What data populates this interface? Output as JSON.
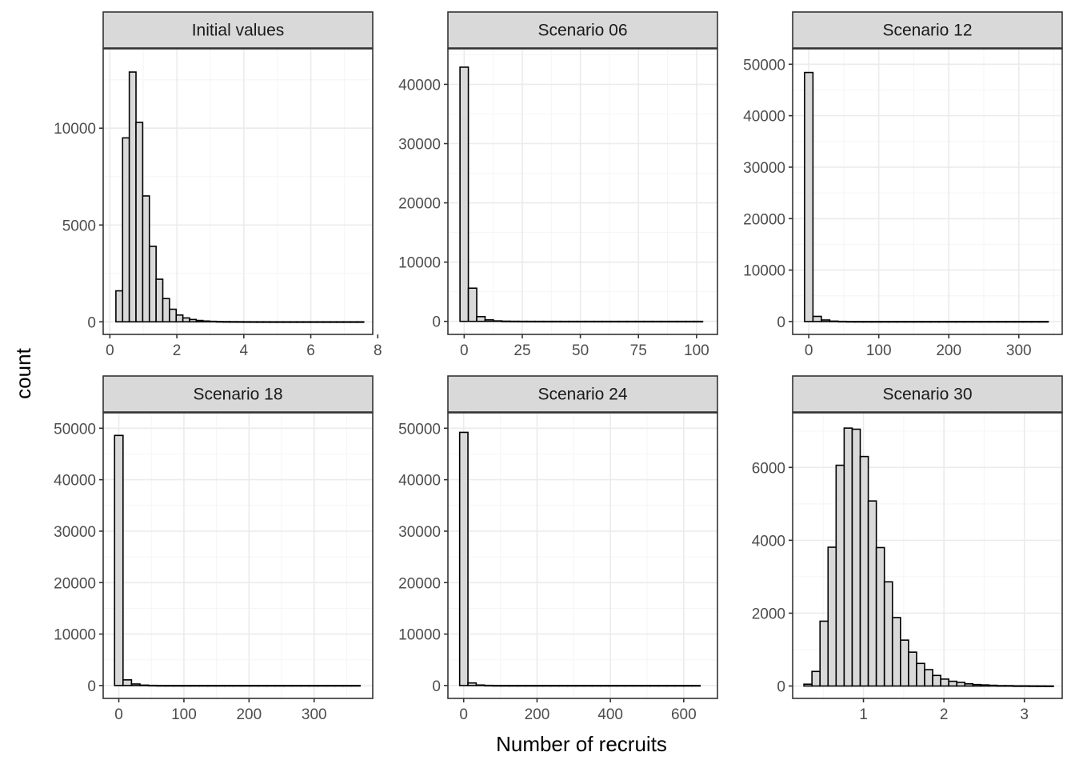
{
  "figure": {
    "xlabel": "Number of recruits",
    "ylabel": "count",
    "colors": {
      "bar_fill": "#d9d9d9",
      "bar_stroke": "#000000",
      "strip_fill": "#d9d9d9",
      "grid_major": "#ebebeb",
      "grid_minor": "#f5f5f5",
      "panel_border": "#333333",
      "tick_label": "#4d4d4d"
    }
  },
  "chart_data": [
    {
      "type": "bar",
      "title": "Initial values",
      "x_start": 0.18,
      "bin_width": 0.2,
      "values": [
        1600,
        9500,
        12900,
        10300,
        6500,
        3900,
        2200,
        1200,
        650,
        350,
        200,
        120,
        70,
        40,
        25,
        15,
        10,
        8,
        6,
        4,
        3,
        2,
        2,
        1,
        1,
        1,
        1,
        1,
        1,
        1,
        1,
        1,
        1,
        1,
        1,
        1,
        1
      ],
      "xlim": [
        -0.2,
        7.85
      ],
      "ylim": [
        -650,
        14100
      ],
      "xticks": [
        0,
        2,
        4,
        6,
        8
      ],
      "xtick_labels": [
        "0",
        "2",
        "4",
        "6",
        "8"
      ],
      "yticks": [
        0,
        5000,
        10000
      ],
      "ytick_labels": [
        "0",
        "5000",
        "10000"
      ],
      "grid": true
    },
    {
      "type": "bar",
      "title": "Scenario 06",
      "x_start": -1.8,
      "bin_width": 3.6,
      "values": [
        42900,
        5600,
        800,
        250,
        80,
        30,
        15,
        8,
        5,
        3,
        2,
        2,
        1,
        1,
        1,
        1,
        1,
        1,
        1,
        1,
        1,
        1,
        1,
        1,
        1,
        1,
        1,
        1,
        1
      ],
      "xlim": [
        -7,
        109
      ],
      "ylim": [
        -2200,
        46000
      ],
      "xticks": [
        0,
        25,
        50,
        75,
        100
      ],
      "xtick_labels": [
        "0",
        "25",
        "50",
        "75",
        "100"
      ],
      "yticks": [
        0,
        10000,
        20000,
        30000,
        40000
      ],
      "ytick_labels": [
        "0",
        "10000",
        "20000",
        "30000",
        "40000"
      ],
      "grid": true
    },
    {
      "type": "bar",
      "title": "Scenario 12",
      "x_start": -6,
      "bin_width": 12,
      "values": [
        48400,
        1000,
        300,
        80,
        30,
        10,
        5,
        3,
        2,
        1,
        1,
        1,
        1,
        1,
        1,
        1,
        1,
        1,
        1,
        1,
        1,
        1,
        1,
        1,
        1,
        1,
        1,
        1,
        1
      ],
      "xlim": [
        -23,
        362
      ],
      "ylim": [
        -2500,
        53000
      ],
      "xticks": [
        0,
        100,
        200,
        300
      ],
      "xtick_labels": [
        "0",
        "100",
        "200",
        "300"
      ],
      "yticks": [
        0,
        10000,
        20000,
        30000,
        40000,
        50000
      ],
      "ytick_labels": [
        "0",
        "10000",
        "20000",
        "30000",
        "40000",
        "50000"
      ],
      "grid": true
    },
    {
      "type": "bar",
      "title": "Scenario 18",
      "x_start": -6.5,
      "bin_width": 13,
      "values": [
        48600,
        1100,
        300,
        80,
        30,
        10,
        5,
        3,
        2,
        1,
        1,
        1,
        1,
        1,
        1,
        1,
        1,
        1,
        1,
        1,
        1,
        1,
        1,
        1,
        1,
        1,
        1,
        1,
        1
      ],
      "xlim": [
        -24,
        390
      ],
      "ylim": [
        -2500,
        53000
      ],
      "xticks": [
        0,
        100,
        200,
        300
      ],
      "xtick_labels": [
        "0",
        "100",
        "200",
        "300"
      ],
      "yticks": [
        0,
        10000,
        20000,
        30000,
        40000,
        50000
      ],
      "ytick_labels": [
        "0",
        "10000",
        "20000",
        "30000",
        "40000",
        "50000"
      ],
      "grid": true
    },
    {
      "type": "bar",
      "title": "Scenario 24",
      "x_start": -11,
      "bin_width": 22.6,
      "values": [
        49200,
        500,
        100,
        30,
        10,
        5,
        3,
        2,
        1,
        1,
        1,
        1,
        1,
        1,
        1,
        1,
        1,
        1,
        1,
        1,
        1,
        1,
        1,
        1,
        1,
        1,
        1,
        1,
        1
      ],
      "xlim": [
        -43,
        692
      ],
      "ylim": [
        -2500,
        53000
      ],
      "xticks": [
        0,
        200,
        400,
        600
      ],
      "xtick_labels": [
        "0",
        "200",
        "400",
        "600"
      ],
      "yticks": [
        0,
        10000,
        20000,
        30000,
        40000,
        50000
      ],
      "ytick_labels": [
        "0",
        "10000",
        "20000",
        "30000",
        "40000",
        "50000"
      ],
      "grid": true
    },
    {
      "type": "bar",
      "title": "Scenario 30",
      "x_start": 0.26,
      "bin_width": 0.1,
      "values": [
        50,
        400,
        1780,
        3810,
        6060,
        7080,
        7050,
        6300,
        5080,
        3800,
        2860,
        1880,
        1260,
        930,
        620,
        450,
        290,
        190,
        130,
        100,
        60,
        40,
        30,
        20,
        10,
        10,
        5,
        5,
        3,
        2,
        1
      ],
      "xlim": [
        0.12,
        3.47
      ],
      "ylim": [
        -340,
        7500
      ],
      "xticks": [
        1,
        2,
        3
      ],
      "xtick_labels": [
        "1",
        "2",
        "3"
      ],
      "yticks": [
        0,
        2000,
        4000,
        6000
      ],
      "ytick_labels": [
        "0",
        "2000",
        "4000",
        "6000"
      ],
      "grid": true
    }
  ]
}
